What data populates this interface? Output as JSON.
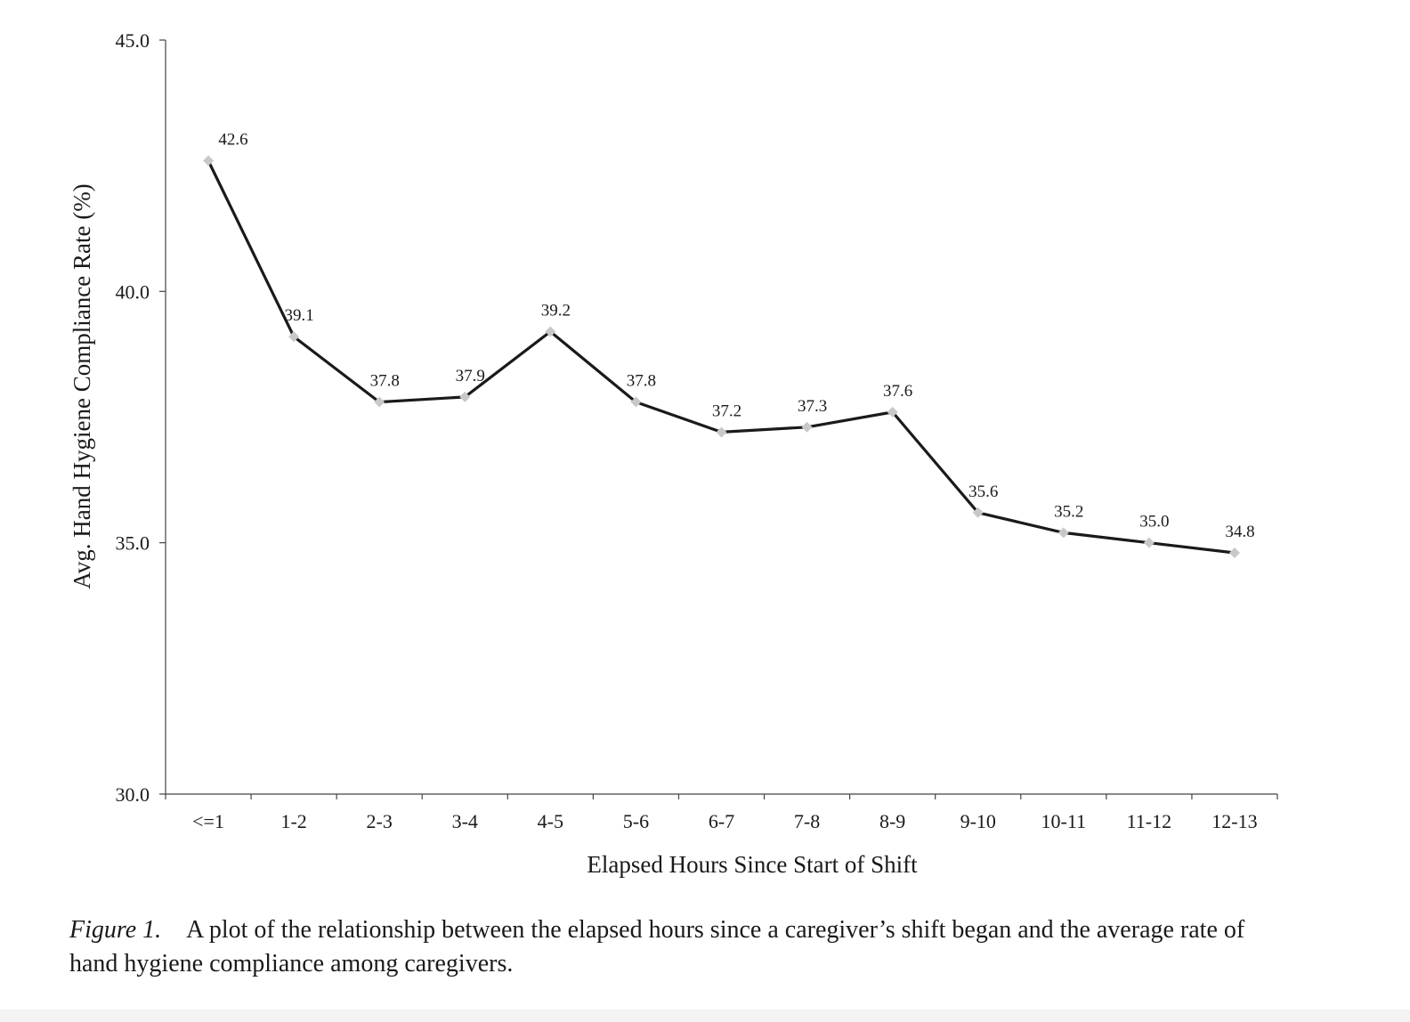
{
  "chart_data": {
    "type": "line",
    "categories": [
      "<=1",
      "1-2",
      "2-3",
      "3-4",
      "4-5",
      "5-6",
      "6-7",
      "7-8",
      "8-9",
      "9-10",
      "10-11",
      "11-12",
      "12-13"
    ],
    "values": [
      42.6,
      39.1,
      37.8,
      37.9,
      39.2,
      37.8,
      37.2,
      37.3,
      37.6,
      35.6,
      35.2,
      35.0,
      34.8
    ],
    "value_labels": [
      "42.6",
      "39.1",
      "37.8",
      "37.9",
      "39.2",
      "37.8",
      "37.2",
      "37.3",
      "37.6",
      "35.6",
      "35.2",
      "35.0",
      "34.8"
    ],
    "xlabel": "Elapsed Hours Since Start of Shift",
    "ylabel": "Avg. Hand Hygiene Compliance Rate (%)",
    "ylim": [
      30.0,
      45.0
    ],
    "yticks": [
      "30.0",
      "35.0",
      "40.0",
      "45.0"
    ],
    "grid": false,
    "line_color": "#1a1a1a",
    "marker_color": "#c8c8c8",
    "marker": "diamond"
  },
  "caption": {
    "figure_label": "Figure 1.",
    "text": "A plot of the relationship between the elapsed hours since a caregiver’s shift began and the average rate of hand hygiene compliance among caregivers."
  }
}
